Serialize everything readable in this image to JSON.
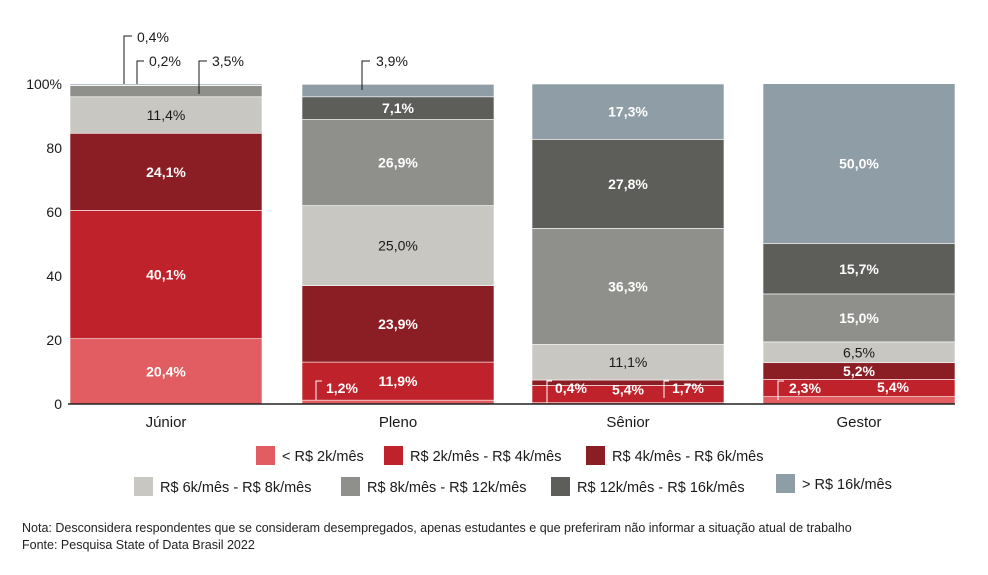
{
  "chart_data": {
    "type": "bar",
    "stacked": true,
    "categories": [
      "Júnior",
      "Pleno",
      "Sênior",
      "Gestor"
    ],
    "ylim": [
      0,
      100
    ],
    "yticks": [
      0,
      20,
      40,
      60,
      80,
      100
    ],
    "ytick_labels": [
      "0",
      "20",
      "40",
      "60",
      "80",
      "100%"
    ],
    "series": [
      {
        "name": "< R$ 2k/mês",
        "color": "#e15d61",
        "values": [
          20.4,
          1.2,
          0.4,
          2.3
        ],
        "labels": [
          "20,4%",
          "1,2%",
          "0,4%",
          "2,3%"
        ]
      },
      {
        "name": "R$ 2k/mês - R$ 4k/mês",
        "color": "#c0222b",
        "values": [
          40.1,
          11.9,
          5.4,
          5.4
        ],
        "labels": [
          "40,1%",
          "11,9%",
          "5,4%",
          "5,4%"
        ]
      },
      {
        "name": "R$ 4k/mês - R$ 6k/mês",
        "color": "#8b1d24",
        "values": [
          24.1,
          23.9,
          1.7,
          5.2
        ],
        "labels": [
          "24,1%",
          "23,9%",
          "1,7%",
          "5,2%"
        ]
      },
      {
        "name": "R$ 6k/mês - R$ 8k/mês",
        "color": "#c8c7c2",
        "values": [
          11.4,
          25.0,
          11.1,
          6.5
        ],
        "labels": [
          "11,4%",
          "25,0%",
          "11,1%",
          "6,5%"
        ]
      },
      {
        "name": "R$ 8k/mês - R$ 12k/mês",
        "color": "#8f8f8b",
        "values": [
          3.5,
          26.9,
          36.3,
          15.0
        ],
        "labels": [
          "3,5%",
          "26,9%",
          "36,3%",
          "15,0%"
        ]
      },
      {
        "name": "R$ 12k/mês - R$ 16k/mês",
        "color": "#5d5e5a",
        "values": [
          0.2,
          7.1,
          27.8,
          15.7
        ],
        "labels": [
          "0,2%",
          "7,1%",
          "27,8%",
          "15,7%"
        ]
      },
      {
        "name": "> R$ 16k/mês",
        "color": "#8f9ea6",
        "values": [
          0.4,
          3.9,
          17.3,
          50.0
        ],
        "labels": [
          "0,4%",
          "3,9%",
          "17,3%",
          "50,0%"
        ]
      }
    ],
    "legend_position": "bottom"
  },
  "note": "Nota: Desconsidera respondentes que se consideram desempregados, apenas estudantes e que preferiram não informar a situação atual de trabalho",
  "source": "Fonte: Pesquisa State of Data Brasil 2022"
}
